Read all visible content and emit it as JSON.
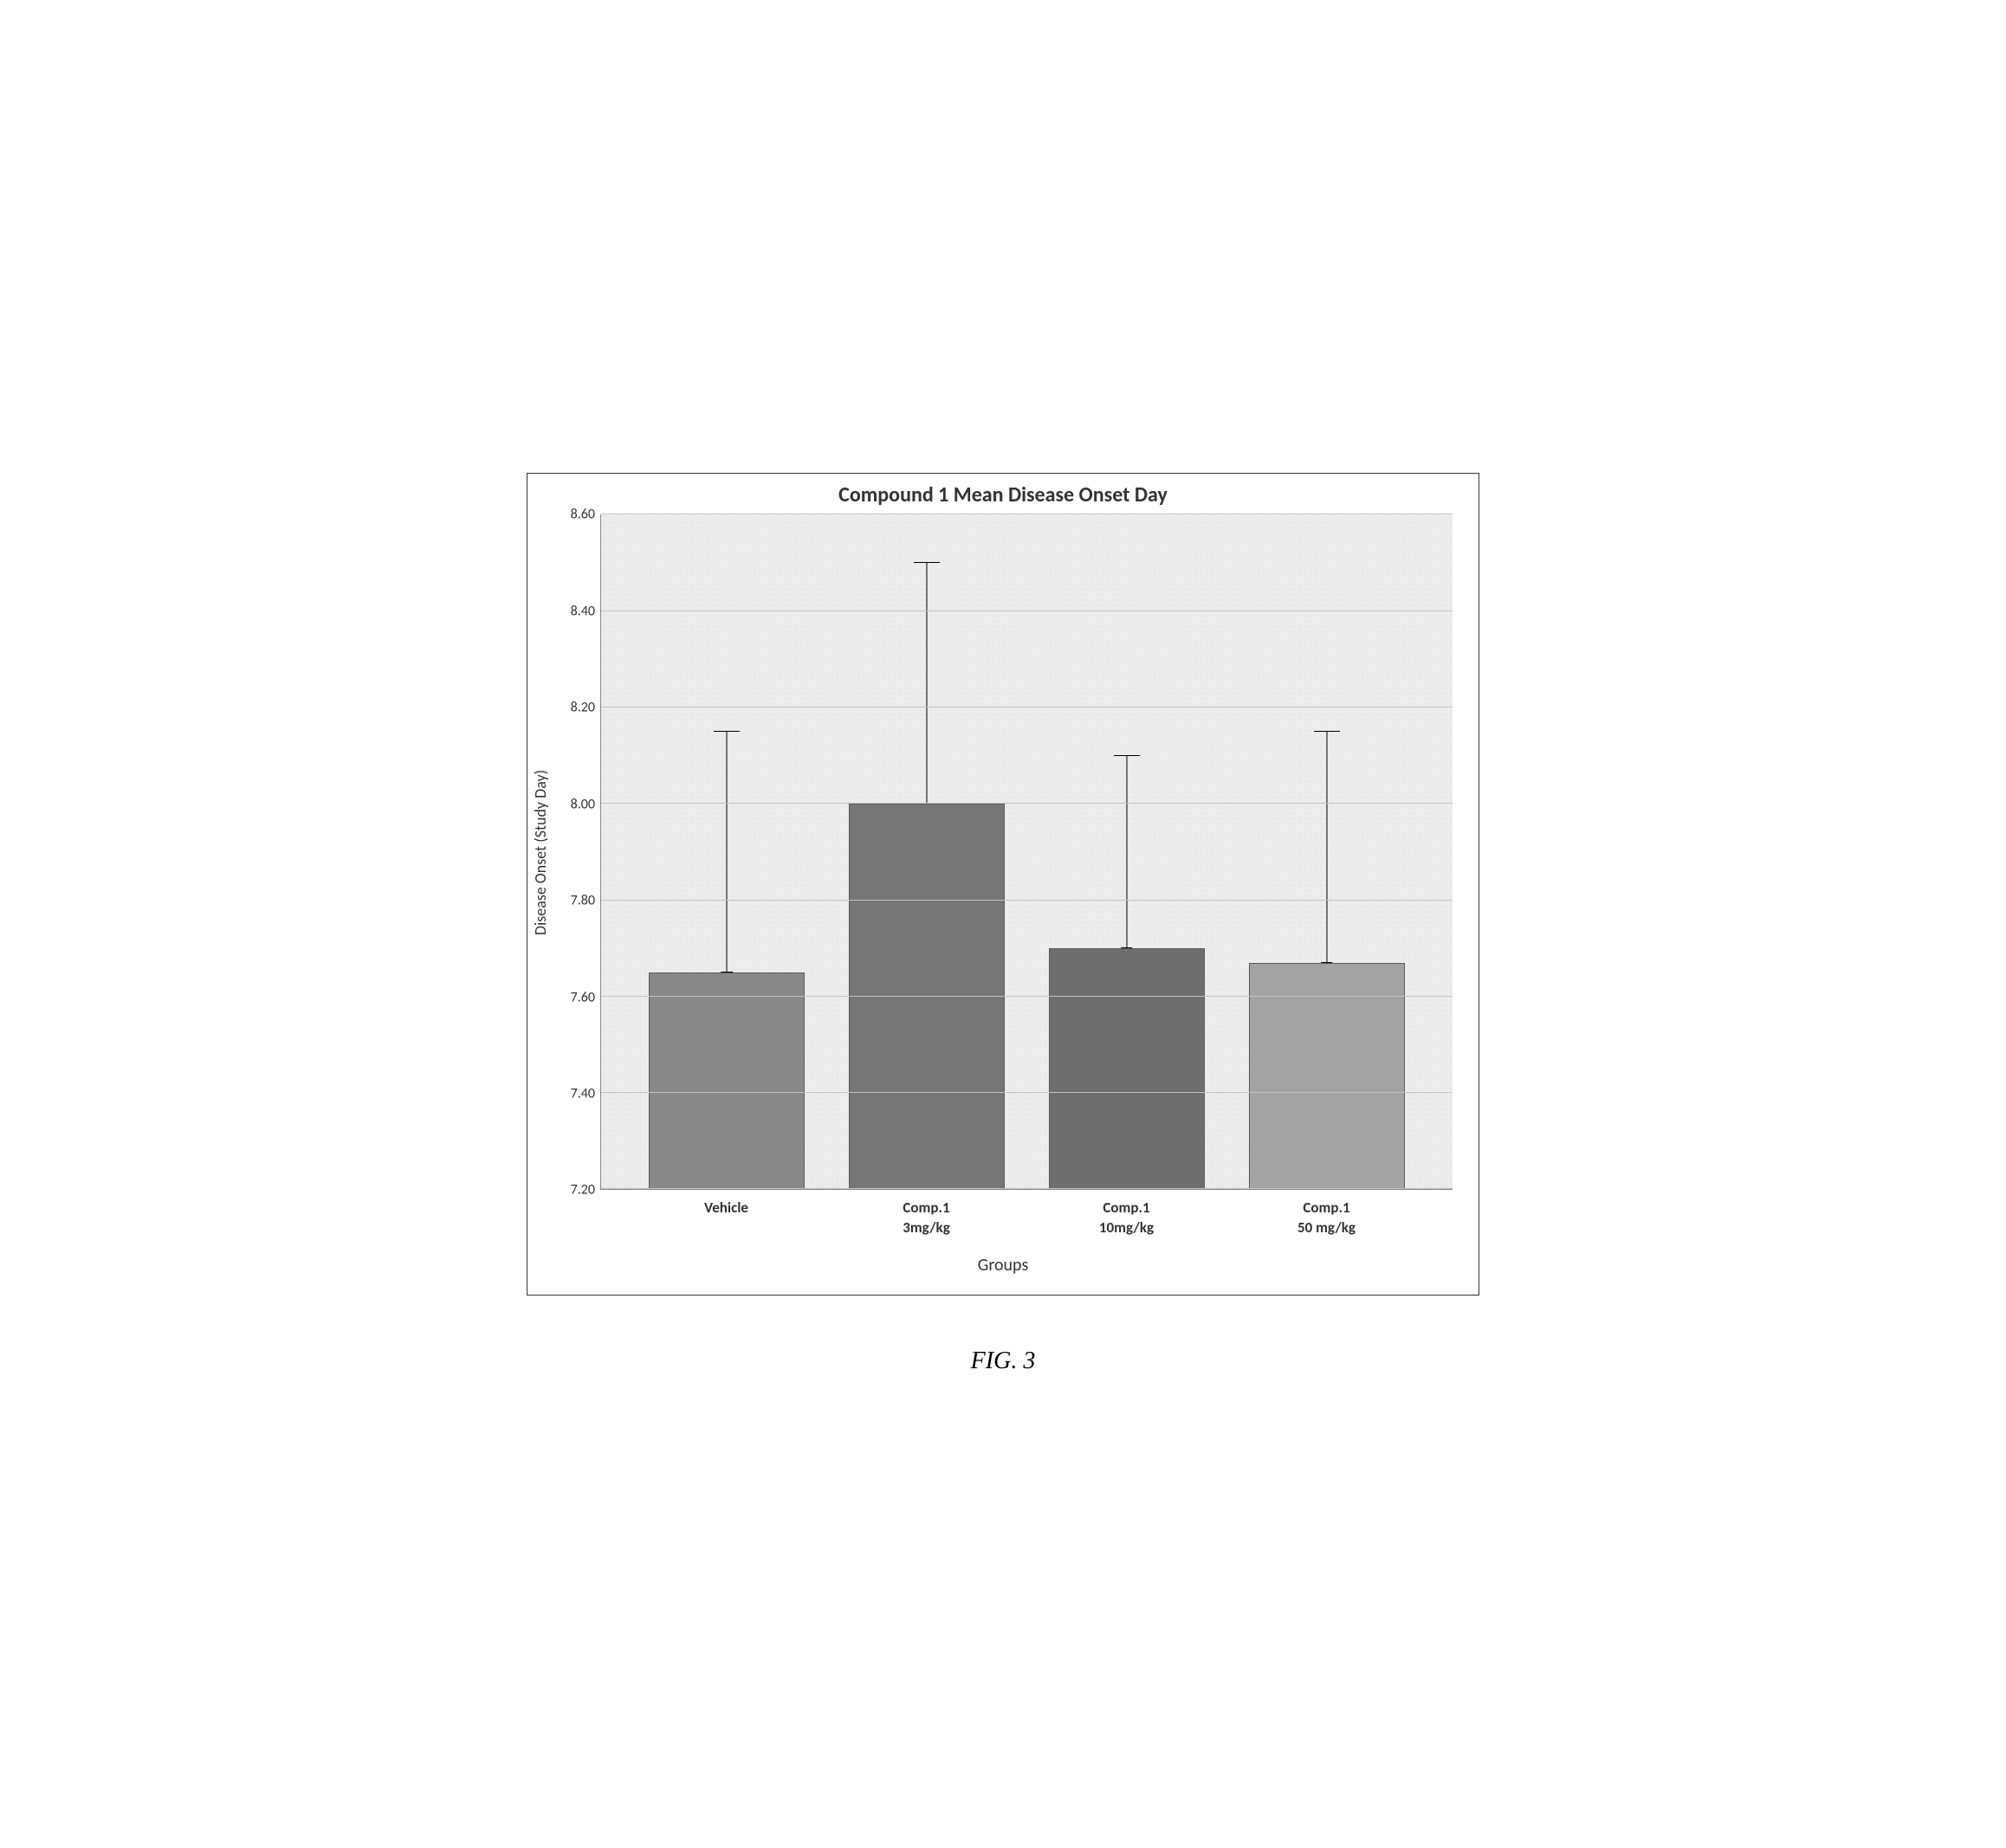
{
  "chart": {
    "type": "bar",
    "title": "Compound 1 Mean Disease Onset Day",
    "title_fontsize": 24,
    "title_weight": "bold",
    "ylabel": "Disease Onset (Study Day)",
    "xlabel": "Groups",
    "label_fontsize": 18,
    "ylim": [
      7.2,
      8.6
    ],
    "ytick_step": 0.2,
    "yticks": [
      "7.20",
      "7.40",
      "7.60",
      "7.80",
      "8.00",
      "8.20",
      "8.40",
      "8.60"
    ],
    "categories": [
      [
        "Vehicle"
      ],
      [
        "Comp.1",
        "3mg/kg"
      ],
      [
        "Comp.1",
        "10mg/kg"
      ],
      [
        "Comp.1",
        "50 mg/kg"
      ]
    ],
    "values": [
      7.65,
      8.0,
      7.7,
      7.67
    ],
    "error_upper": [
      8.15,
      8.5,
      8.1,
      8.15
    ],
    "bar_colors": [
      "#888888",
      "#767676",
      "#6e6e6e",
      "#a3a3a3"
    ],
    "bar_border_color": "#5a5a5a",
    "bar_width": 0.78,
    "error_bar_color": "#000000",
    "error_cap_width": 30,
    "grid_color": "#c2c2c2",
    "plot_background_color": "#ececec",
    "plot_dot_color": "#d6d6d6",
    "outer_border_color": "#333333",
    "axis_color": "#888888",
    "tick_fontsize": 16,
    "xtick_fontsize": 17,
    "xtick_weight": "bold"
  },
  "caption": "FIG. 3",
  "caption_fontsize": 28,
  "caption_style": "italic",
  "caption_family": "Times New Roman"
}
